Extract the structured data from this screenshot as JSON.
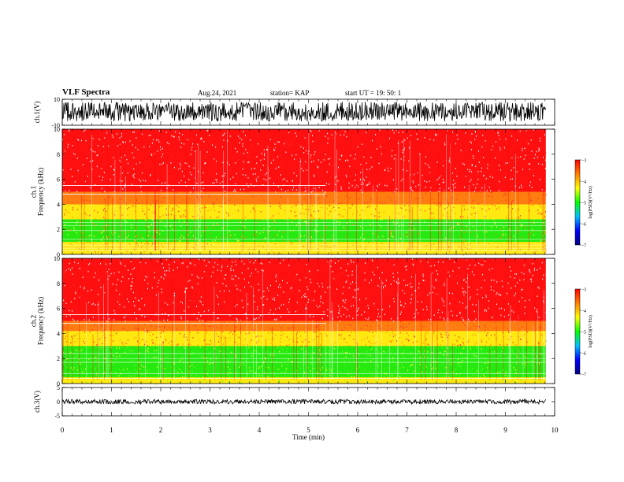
{
  "header": {
    "title": "VLF Spectra",
    "date": "Aug.24, 2021",
    "station": "station= KAP",
    "start": "start  UT =   19: 50: 1"
  },
  "chart_data": [
    {
      "type": "line",
      "panel": "ch1-waveform",
      "ylabel": "ch.1(V)",
      "ylim": [
        -10,
        10
      ],
      "y_ticks": [
        "10",
        "-10"
      ],
      "xlim": [
        0,
        10
      ],
      "data_end_min": 9.82,
      "envelope_min": -7,
      "envelope_max": 8
    },
    {
      "type": "heatmap",
      "panel": "ch1-spectrogram",
      "ylabel": "ch.1\nFrequency (kHz)",
      "ylim": [
        0,
        10
      ],
      "y_ticks": [
        "0",
        "2",
        "4",
        "6",
        "8",
        "10"
      ],
      "xlim": [
        0,
        10
      ],
      "data_end_min": 9.82,
      "value_range": [
        -7,
        -3
      ],
      "bands_khz": [
        {
          "from": 0.0,
          "to": 0.55,
          "level": -4.3
        },
        {
          "from": 0.55,
          "to": 1.0,
          "level": -4.6
        },
        {
          "from": 1.0,
          "to": 2.8,
          "level": -4.8
        },
        {
          "from": 2.8,
          "to": 4.0,
          "level": -4.2
        },
        {
          "from": 4.0,
          "to": 5.0,
          "level": -3.8
        },
        {
          "from": 5.0,
          "to": 10.0,
          "level": -3.3
        }
      ],
      "lines_khz": [
        0.3,
        0.5,
        0.75,
        1.2,
        1.9,
        2.3,
        2.55
      ]
    },
    {
      "type": "heatmap",
      "panel": "ch2-spectrogram",
      "ylabel": "ch.2\nFrequency (kHz)",
      "ylim": [
        0,
        10
      ],
      "y_ticks": [
        "0",
        "2",
        "4",
        "6",
        "8",
        "10"
      ],
      "xlim": [
        0,
        10
      ],
      "data_end_min": 9.82,
      "value_range": [
        -7,
        -3
      ],
      "bands_khz": [
        {
          "from": 0.0,
          "to": 0.5,
          "level": -4.4
        },
        {
          "from": 0.5,
          "to": 3.0,
          "level": -5.2
        },
        {
          "from": 3.0,
          "to": 4.2,
          "level": -4.1
        },
        {
          "from": 4.2,
          "to": 5.0,
          "level": -3.7
        },
        {
          "from": 5.0,
          "to": 10.0,
          "level": -3.3
        }
      ],
      "lines_khz": [
        0.4,
        0.8,
        1.7,
        2.0,
        2.4
      ]
    },
    {
      "type": "line",
      "panel": "ch3-waveform",
      "ylabel": "ch.3(V)",
      "ylim": [
        -5,
        5
      ],
      "y_ticks": [
        "5",
        "0",
        "-5"
      ],
      "xlim": [
        0,
        10
      ],
      "data_end_min": 9.82,
      "envelope_min": -0.8,
      "envelope_max": 0.8
    }
  ],
  "x_axis": {
    "label": "Time (min)",
    "ticks": [
      "0",
      "1",
      "2",
      "3",
      "4",
      "5",
      "6",
      "7",
      "8",
      "9",
      "10"
    ]
  },
  "colorbar": {
    "label": "log(PSD)(V²/Hz)",
    "ticks": [
      "-3",
      "-4",
      "-5",
      "-6",
      "-7"
    ],
    "colors": [
      "#ff0000",
      "#ff7f00",
      "#ffff00",
      "#00ff00",
      "#00c0ff",
      "#0000ff",
      "#000080"
    ]
  }
}
